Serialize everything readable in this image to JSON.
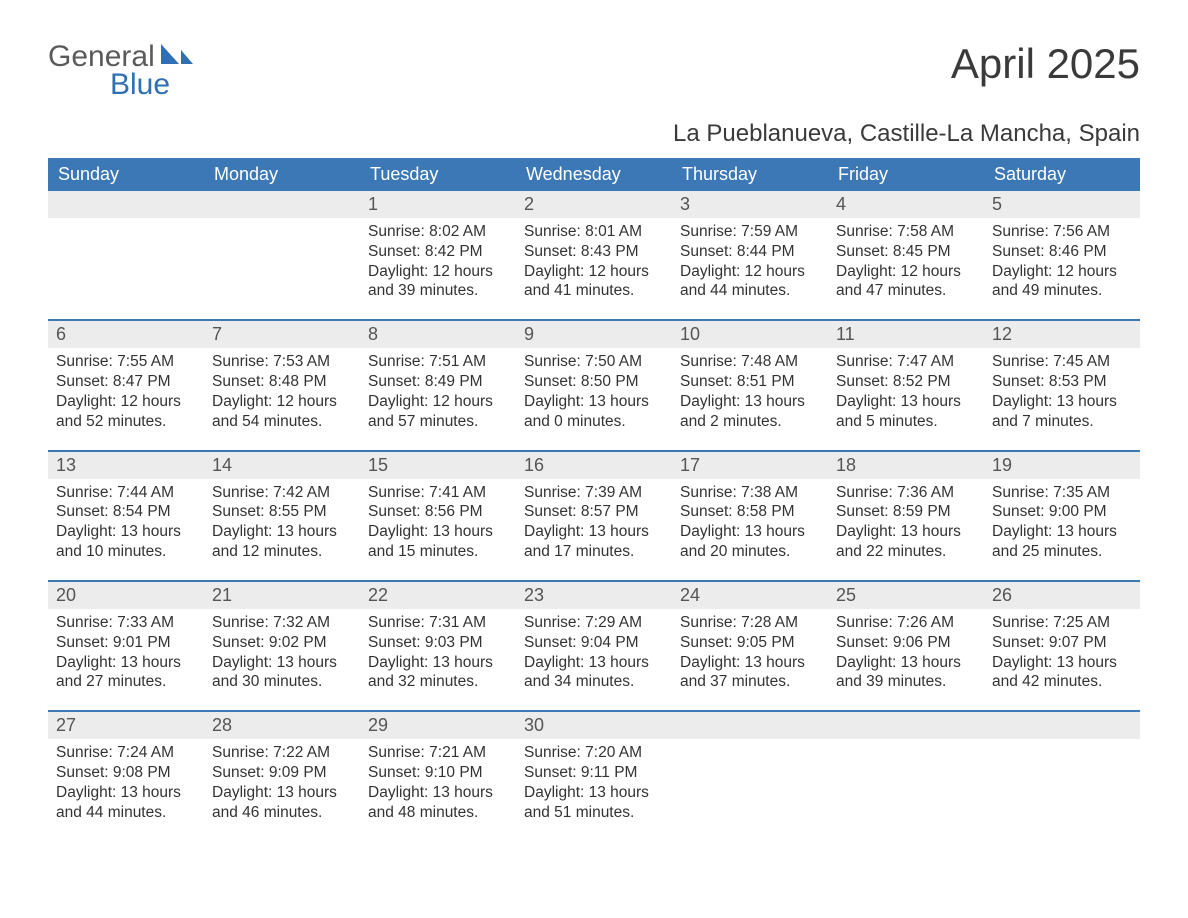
{
  "logo": {
    "text1": "General",
    "text2": "Blue",
    "accent_color": "#2f6fb3",
    "gray_color": "#5a5a5a"
  },
  "title": "April 2025",
  "subtitle": "La Pueblanueva, Castille-La Mancha, Spain",
  "colors": {
    "header_bg": "#3b78b5",
    "header_fg": "#ffffff",
    "daynum_bg": "#ececec",
    "daynum_fg": "#555555",
    "body_fg": "#333333",
    "rule": "#3b78b5",
    "page_bg": "#ffffff"
  },
  "font_sizes": {
    "title": 42,
    "subtitle": 24,
    "dow": 18,
    "daynum": 18,
    "body": 15.5
  },
  "days_of_week": [
    "Sunday",
    "Monday",
    "Tuesday",
    "Wednesday",
    "Thursday",
    "Friday",
    "Saturday"
  ],
  "weeks": [
    [
      null,
      null,
      {
        "n": "1",
        "sunrise": "8:02 AM",
        "sunset": "8:42 PM",
        "dl1": "12 hours",
        "dl2": "and 39 minutes."
      },
      {
        "n": "2",
        "sunrise": "8:01 AM",
        "sunset": "8:43 PM",
        "dl1": "12 hours",
        "dl2": "and 41 minutes."
      },
      {
        "n": "3",
        "sunrise": "7:59 AM",
        "sunset": "8:44 PM",
        "dl1": "12 hours",
        "dl2": "and 44 minutes."
      },
      {
        "n": "4",
        "sunrise": "7:58 AM",
        "sunset": "8:45 PM",
        "dl1": "12 hours",
        "dl2": "and 47 minutes."
      },
      {
        "n": "5",
        "sunrise": "7:56 AM",
        "sunset": "8:46 PM",
        "dl1": "12 hours",
        "dl2": "and 49 minutes."
      }
    ],
    [
      {
        "n": "6",
        "sunrise": "7:55 AM",
        "sunset": "8:47 PM",
        "dl1": "12 hours",
        "dl2": "and 52 minutes."
      },
      {
        "n": "7",
        "sunrise": "7:53 AM",
        "sunset": "8:48 PM",
        "dl1": "12 hours",
        "dl2": "and 54 minutes."
      },
      {
        "n": "8",
        "sunrise": "7:51 AM",
        "sunset": "8:49 PM",
        "dl1": "12 hours",
        "dl2": "and 57 minutes."
      },
      {
        "n": "9",
        "sunrise": "7:50 AM",
        "sunset": "8:50 PM",
        "dl1": "13 hours",
        "dl2": "and 0 minutes."
      },
      {
        "n": "10",
        "sunrise": "7:48 AM",
        "sunset": "8:51 PM",
        "dl1": "13 hours",
        "dl2": "and 2 minutes."
      },
      {
        "n": "11",
        "sunrise": "7:47 AM",
        "sunset": "8:52 PM",
        "dl1": "13 hours",
        "dl2": "and 5 minutes."
      },
      {
        "n": "12",
        "sunrise": "7:45 AM",
        "sunset": "8:53 PM",
        "dl1": "13 hours",
        "dl2": "and 7 minutes."
      }
    ],
    [
      {
        "n": "13",
        "sunrise": "7:44 AM",
        "sunset": "8:54 PM",
        "dl1": "13 hours",
        "dl2": "and 10 minutes."
      },
      {
        "n": "14",
        "sunrise": "7:42 AM",
        "sunset": "8:55 PM",
        "dl1": "13 hours",
        "dl2": "and 12 minutes."
      },
      {
        "n": "15",
        "sunrise": "7:41 AM",
        "sunset": "8:56 PM",
        "dl1": "13 hours",
        "dl2": "and 15 minutes."
      },
      {
        "n": "16",
        "sunrise": "7:39 AM",
        "sunset": "8:57 PM",
        "dl1": "13 hours",
        "dl2": "and 17 minutes."
      },
      {
        "n": "17",
        "sunrise": "7:38 AM",
        "sunset": "8:58 PM",
        "dl1": "13 hours",
        "dl2": "and 20 minutes."
      },
      {
        "n": "18",
        "sunrise": "7:36 AM",
        "sunset": "8:59 PM",
        "dl1": "13 hours",
        "dl2": "and 22 minutes."
      },
      {
        "n": "19",
        "sunrise": "7:35 AM",
        "sunset": "9:00 PM",
        "dl1": "13 hours",
        "dl2": "and 25 minutes."
      }
    ],
    [
      {
        "n": "20",
        "sunrise": "7:33 AM",
        "sunset": "9:01 PM",
        "dl1": "13 hours",
        "dl2": "and 27 minutes."
      },
      {
        "n": "21",
        "sunrise": "7:32 AM",
        "sunset": "9:02 PM",
        "dl1": "13 hours",
        "dl2": "and 30 minutes."
      },
      {
        "n": "22",
        "sunrise": "7:31 AM",
        "sunset": "9:03 PM",
        "dl1": "13 hours",
        "dl2": "and 32 minutes."
      },
      {
        "n": "23",
        "sunrise": "7:29 AM",
        "sunset": "9:04 PM",
        "dl1": "13 hours",
        "dl2": "and 34 minutes."
      },
      {
        "n": "24",
        "sunrise": "7:28 AM",
        "sunset": "9:05 PM",
        "dl1": "13 hours",
        "dl2": "and 37 minutes."
      },
      {
        "n": "25",
        "sunrise": "7:26 AM",
        "sunset": "9:06 PM",
        "dl1": "13 hours",
        "dl2": "and 39 minutes."
      },
      {
        "n": "26",
        "sunrise": "7:25 AM",
        "sunset": "9:07 PM",
        "dl1": "13 hours",
        "dl2": "and 42 minutes."
      }
    ],
    [
      {
        "n": "27",
        "sunrise": "7:24 AM",
        "sunset": "9:08 PM",
        "dl1": "13 hours",
        "dl2": "and 44 minutes."
      },
      {
        "n": "28",
        "sunrise": "7:22 AM",
        "sunset": "9:09 PM",
        "dl1": "13 hours",
        "dl2": "and 46 minutes."
      },
      {
        "n": "29",
        "sunrise": "7:21 AM",
        "sunset": "9:10 PM",
        "dl1": "13 hours",
        "dl2": "and 48 minutes."
      },
      {
        "n": "30",
        "sunrise": "7:20 AM",
        "sunset": "9:11 PM",
        "dl1": "13 hours",
        "dl2": "and 51 minutes."
      },
      null,
      null,
      null
    ]
  ],
  "labels": {
    "sunrise": "Sunrise:",
    "sunset": "Sunset:",
    "daylight": "Daylight:"
  }
}
